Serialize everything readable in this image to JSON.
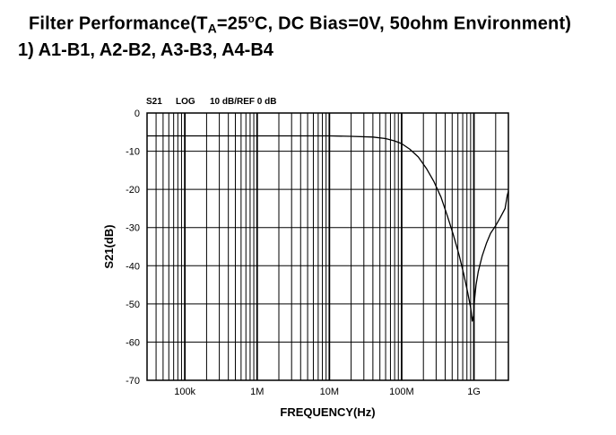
{
  "header": {
    "title_prefix": "Filter Performance(T",
    "title_sub": "A",
    "title_suffix": "=25",
    "title_degree": "o",
    "title_rest": "C, DC Bias=0V, 50ohm Environment)",
    "subtitle": "1) A1-B1, A2-B2, A3-B3, A4-B4"
  },
  "chart_data": {
    "type": "line",
    "annotations": {
      "measurement": "S21",
      "format": "LOG",
      "scale": "10 dB/REF 0 dB"
    },
    "xlabel": "FREQUENCY(Hz)",
    "ylabel": "S21(dB)",
    "xscale": "log",
    "xlim": [
      30000,
      3000000000
    ],
    "ylim": [
      -70,
      0
    ],
    "x_ticks": [
      {
        "value": 100000,
        "label": "100k"
      },
      {
        "value": 1000000,
        "label": "1M"
      },
      {
        "value": 10000000,
        "label": "10M"
      },
      {
        "value": 100000000,
        "label": "100M"
      },
      {
        "value": 1000000000,
        "label": "1G"
      }
    ],
    "y_ticks": [
      {
        "value": 0,
        "label": "0"
      },
      {
        "value": -10,
        "label": "-10"
      },
      {
        "value": -20,
        "label": "-20"
      },
      {
        "value": -30,
        "label": "-30"
      },
      {
        "value": -40,
        "label": "-40"
      },
      {
        "value": -50,
        "label": "-50"
      },
      {
        "value": -60,
        "label": "-60"
      },
      {
        "value": -70,
        "label": "-70"
      }
    ],
    "grid": true,
    "series": [
      {
        "color": "#000000",
        "x": [
          30000,
          1000000,
          10000000,
          20000000,
          40000000,
          60000000,
          80000000,
          100000000,
          130000000,
          170000000,
          220000000,
          280000000,
          350000000,
          430000000,
          520000000,
          620000000,
          720000000,
          820000000,
          900000000,
          950000000,
          990000000,
          1020000000,
          1070000000,
          1150000000,
          1300000000,
          1500000000,
          1700000000,
          2000000000,
          2300000000,
          2700000000,
          2900000000,
          3000000000
        ],
        "y": [
          -6,
          -6,
          -6,
          -6.1,
          -6.3,
          -6.7,
          -7.3,
          -8,
          -9.5,
          -11.5,
          -14.5,
          -18,
          -22,
          -27,
          -32,
          -37,
          -42,
          -47,
          -51,
          -54.5,
          -53,
          -49,
          -45,
          -41.5,
          -37.5,
          -34,
          -31.5,
          -29.5,
          -27.5,
          -25,
          -21.5,
          -20.5
        ]
      }
    ]
  }
}
